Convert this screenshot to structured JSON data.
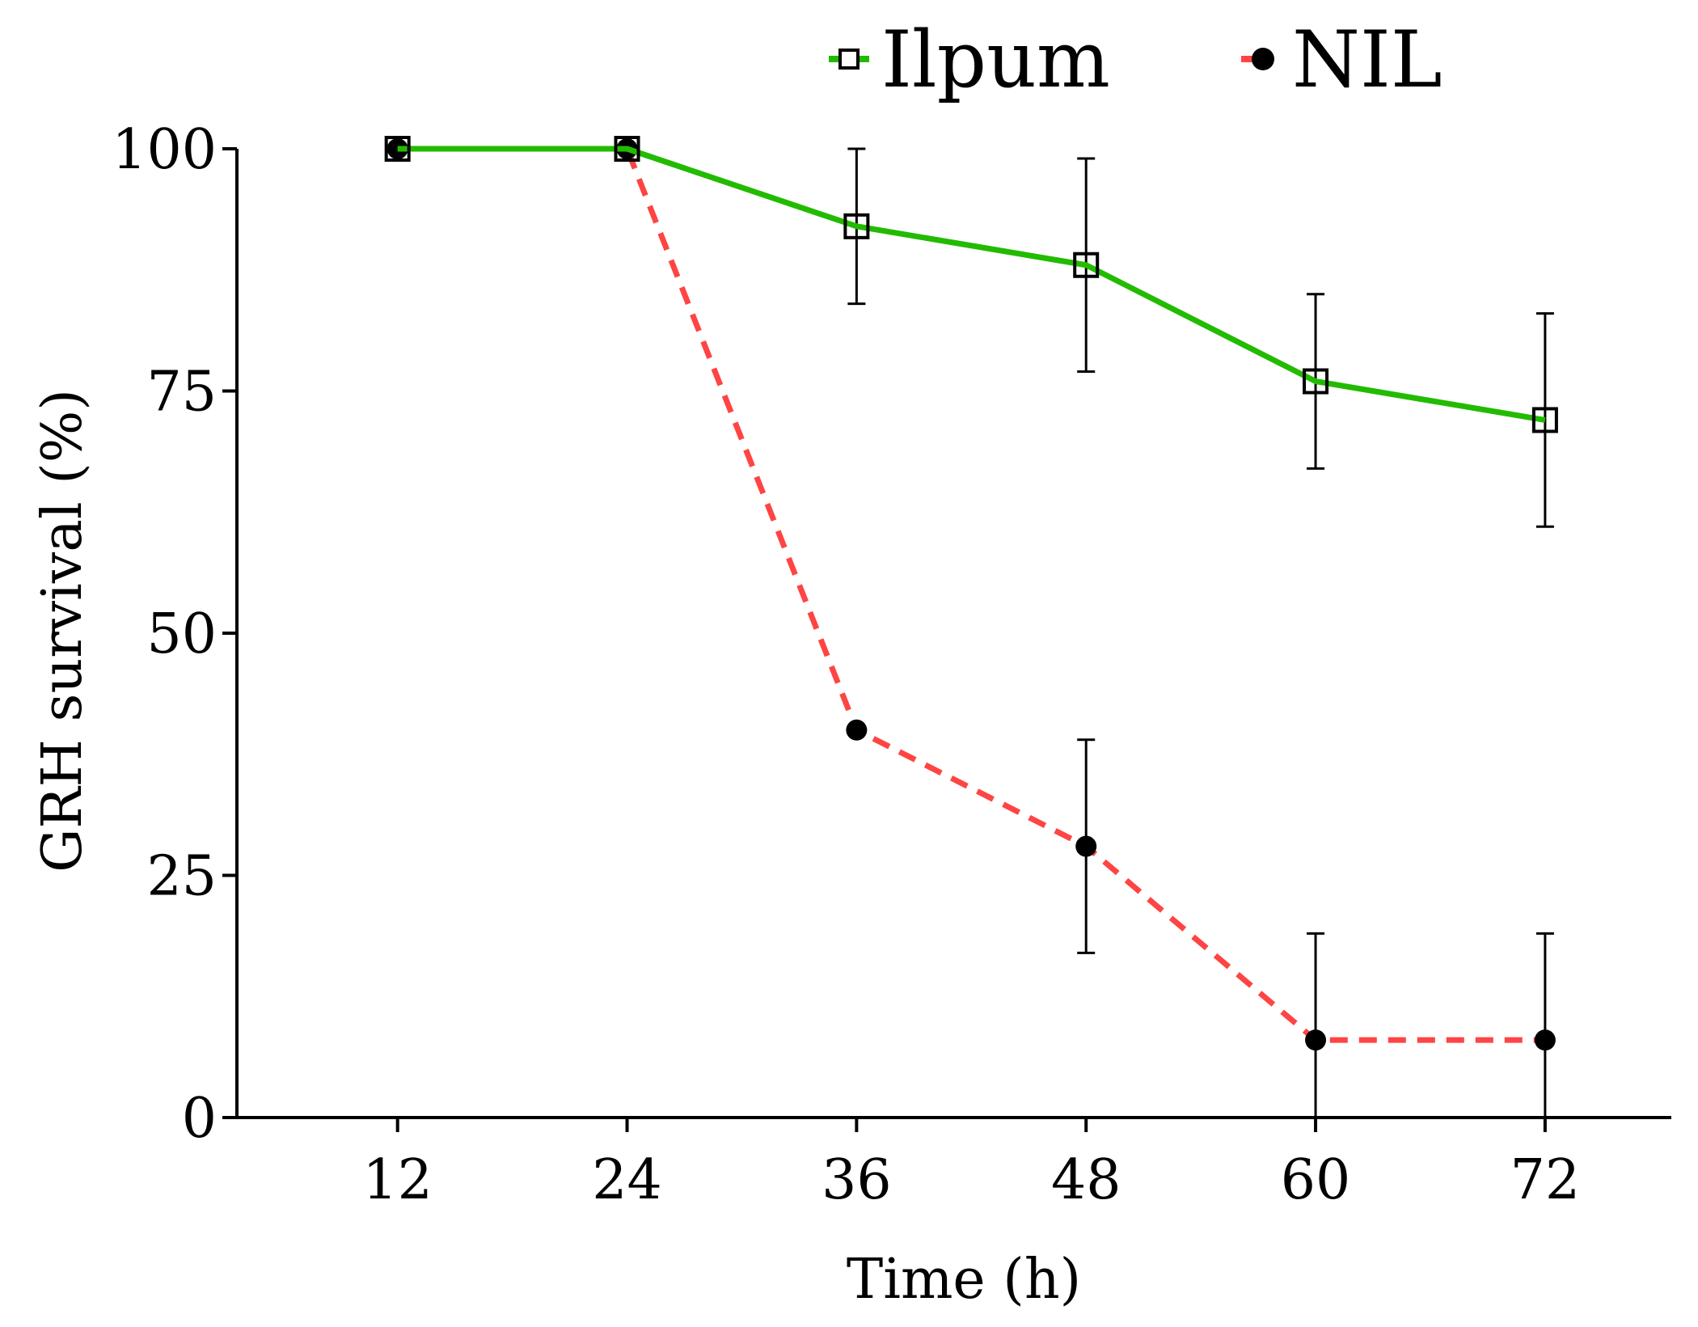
{
  "chart_data": {
    "type": "line",
    "title": "",
    "xlabel": "Time (h)",
    "ylabel": "GRH survival (%)",
    "x": [
      12,
      24,
      36,
      48,
      60,
      72
    ],
    "x_tick_labels": [
      "12",
      "24",
      "36",
      "48",
      "60",
      "72"
    ],
    "xlim": [
      3.6,
      78.6
    ],
    "ylim": [
      0,
      100
    ],
    "y_ticks": [
      0,
      25,
      50,
      75,
      100
    ],
    "y_tick_labels": [
      "0",
      "25",
      "50",
      "75",
      "100"
    ],
    "grid": false,
    "legend_position": "top",
    "series": [
      {
        "name": "Ilpum",
        "values": [
          100,
          100,
          92,
          88,
          76,
          72
        ],
        "error": [
          0,
          0,
          8,
          11,
          9,
          11
        ],
        "line_color": "#22bb00",
        "line_style": "solid",
        "marker": "open-square"
      },
      {
        "name": "NIL",
        "values": [
          100,
          100,
          40,
          28,
          8,
          8
        ],
        "error": [
          0,
          0,
          0,
          11,
          11,
          11
        ],
        "line_color": "#ff4444",
        "line_style": "dashed",
        "marker": "filled-circle"
      }
    ]
  }
}
